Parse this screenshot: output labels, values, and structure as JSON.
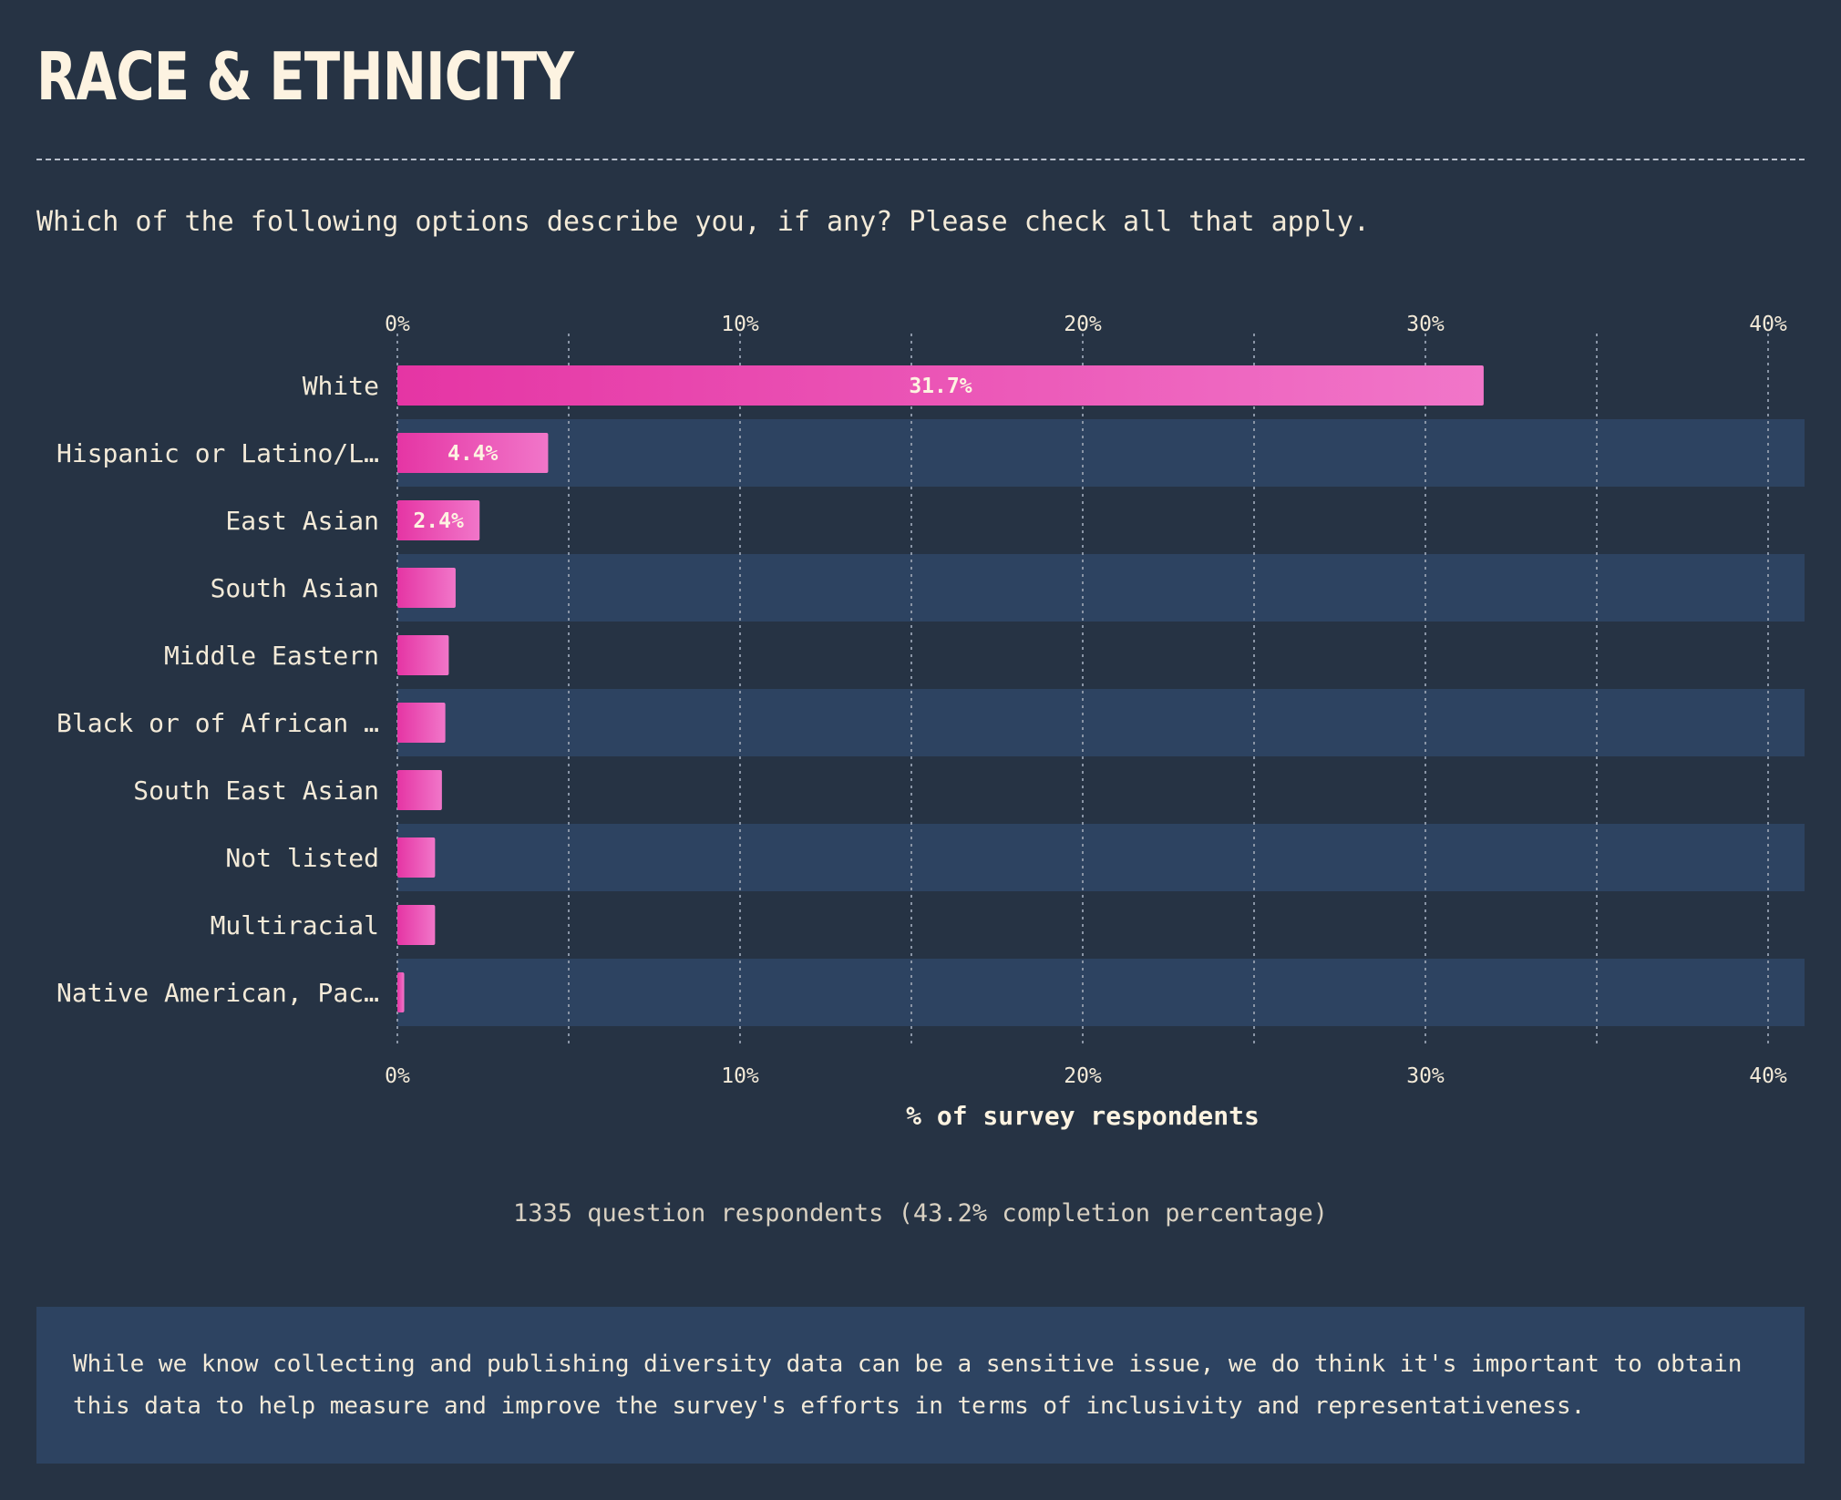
{
  "header": {
    "title": "RACE & ETHNICITY",
    "question": "Which of the following options describe you, if any? Please check all that apply."
  },
  "chart_data": {
    "type": "bar",
    "orientation": "horizontal",
    "categories": [
      "White",
      "Hispanic or Latino/L…",
      "East Asian",
      "South Asian",
      "Middle Eastern",
      "Black or of African …",
      "South East Asian",
      "Not listed",
      "Multiracial",
      "Native American, Pac…"
    ],
    "values": [
      31.7,
      4.4,
      2.4,
      1.7,
      1.5,
      1.4,
      1.3,
      1.1,
      1.1,
      0.2
    ],
    "data_labels": [
      "31.7%",
      "4.4%",
      "2.4%",
      "",
      "",
      "",
      "",
      "",
      "",
      ""
    ],
    "xlabel": "% of survey respondents",
    "xlim": [
      0,
      41
    ],
    "xticks": [
      0,
      10,
      20,
      30,
      40
    ],
    "xtick_labels": [
      "0%",
      "10%",
      "20%",
      "30%",
      "40%"
    ],
    "minor_gridlines": [
      5,
      15,
      25,
      35
    ],
    "grid": true,
    "axis_labels_top_and_bottom": true,
    "colors": {
      "bar_start": "#e535a4",
      "bar_end": "#f176c9",
      "band": "#2d4361",
      "grid": "#8a95a6",
      "text": "#f3ead8"
    }
  },
  "footer": {
    "respondents": "1335 question respondents (43.2% completion percentage)",
    "note": "While we know collecting and publishing diversity data can be a sensitive issue, we do think it's important to obtain this data to help measure and improve the survey's efforts in terms of inclusivity and representativeness."
  }
}
